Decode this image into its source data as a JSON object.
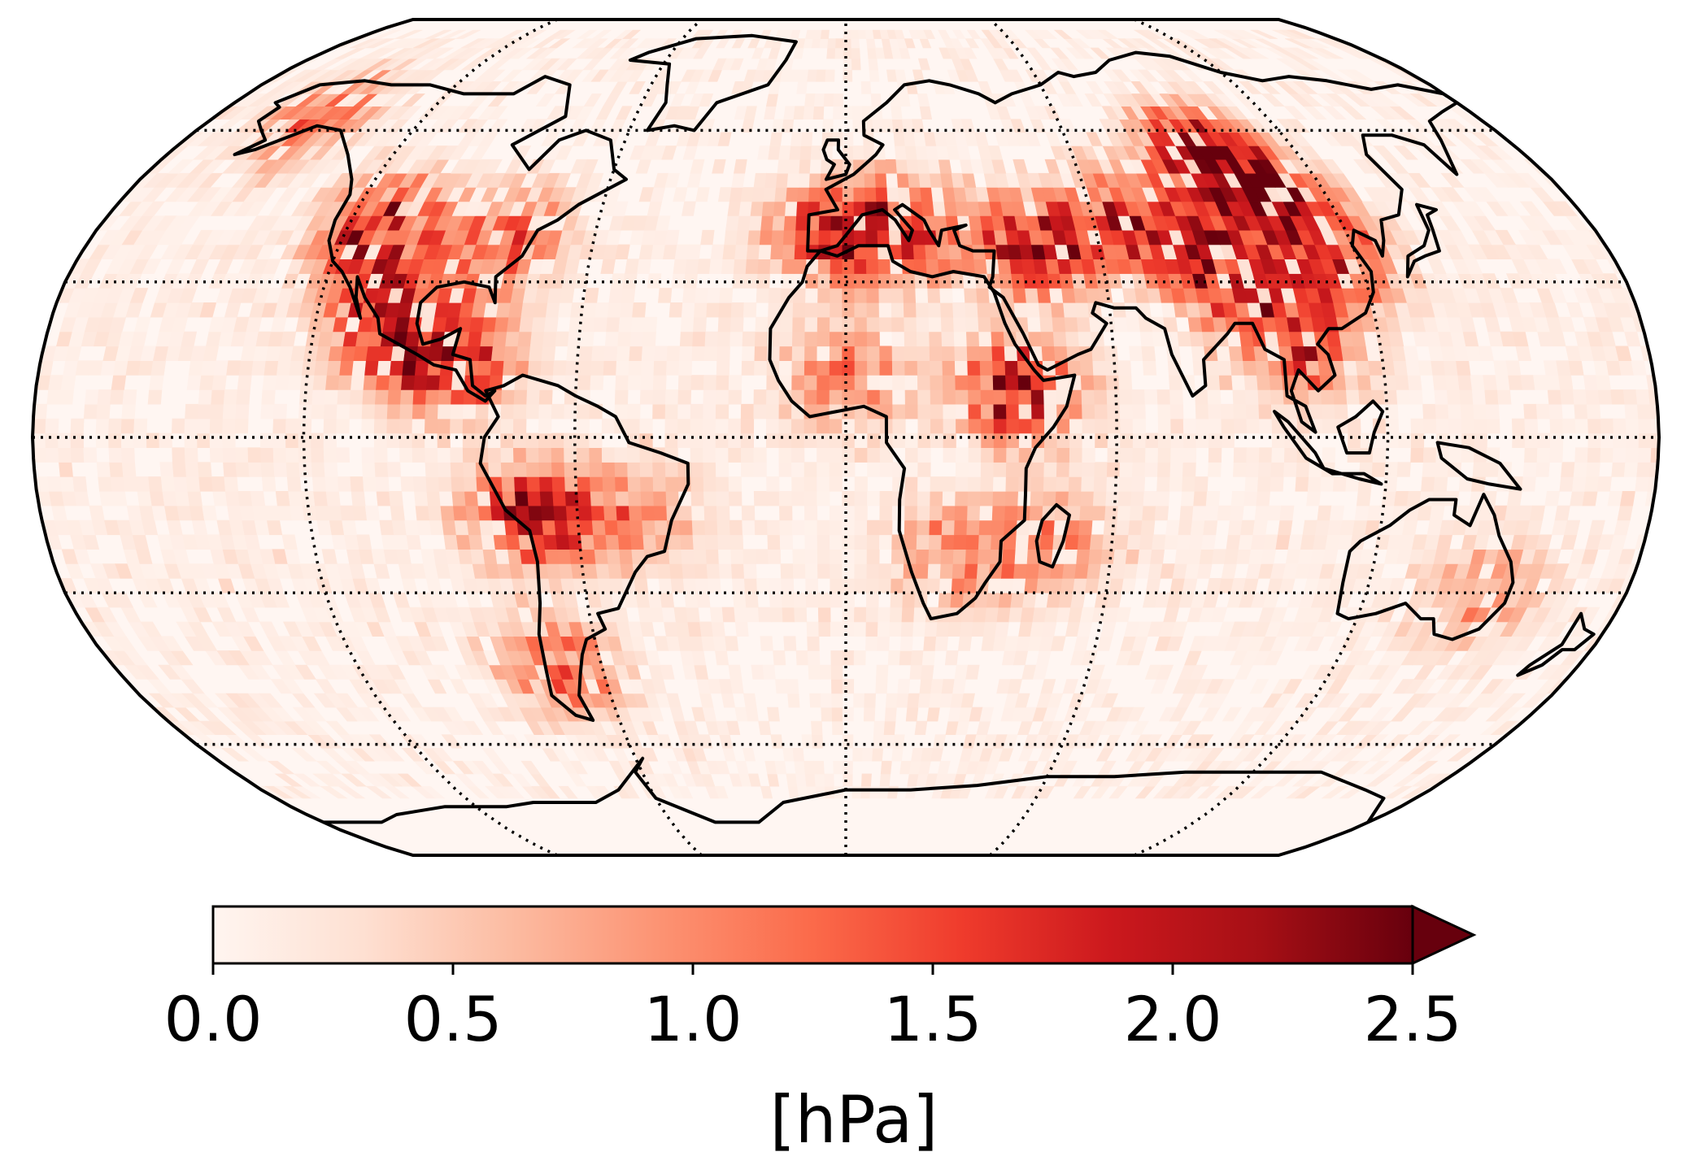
{
  "map": {
    "projection": "Robinson",
    "gridlines": {
      "style": "dotted",
      "latitudes": [
        -60,
        -30,
        0,
        30,
        60
      ],
      "longitudes": [
        -120,
        -60,
        0,
        60,
        120
      ]
    },
    "coastlines": true,
    "field": {
      "description_color": "Reds",
      "hotspots": [
        {
          "region": "western-north-america",
          "lon": -112,
          "lat": 40,
          "value": 2.4
        },
        {
          "region": "mexico",
          "lon": -102,
          "lat": 22,
          "value": 2.3
        },
        {
          "region": "central-america",
          "lon": -88,
          "lat": 14,
          "value": 2.0
        },
        {
          "region": "eastern-usa",
          "lon": -82,
          "lat": 38,
          "value": 1.6
        },
        {
          "region": "alaska",
          "lon": -150,
          "lat": 63,
          "value": 1.4
        },
        {
          "region": "andes",
          "lon": -70,
          "lat": -15,
          "value": 2.2
        },
        {
          "region": "patagonia",
          "lon": -70,
          "lat": -45,
          "value": 1.5
        },
        {
          "region": "brazil",
          "lon": -48,
          "lat": -15,
          "value": 1.0
        },
        {
          "region": "iberia",
          "lon": -4,
          "lat": 40,
          "value": 2.0
        },
        {
          "region": "mediterranean",
          "lon": 15,
          "lat": 40,
          "value": 1.8
        },
        {
          "region": "turkey-iran",
          "lon": 45,
          "lat": 37,
          "value": 2.4
        },
        {
          "region": "central-asia",
          "lon": 70,
          "lat": 42,
          "value": 2.0
        },
        {
          "region": "siberia",
          "lon": 95,
          "lat": 55,
          "value": 2.5
        },
        {
          "region": "mongolia",
          "lon": 105,
          "lat": 47,
          "value": 2.4
        },
        {
          "region": "tibet-himalaya",
          "lon": 88,
          "lat": 32,
          "value": 2.3
        },
        {
          "region": "east-asia",
          "lon": 115,
          "lat": 35,
          "value": 1.8
        },
        {
          "region": "southeast-asia",
          "lon": 102,
          "lat": 18,
          "value": 1.8
        },
        {
          "region": "ethiopia",
          "lon": 38,
          "lat": 9,
          "value": 2.2
        },
        {
          "region": "west-africa",
          "lon": 0,
          "lat": 12,
          "value": 1.2
        },
        {
          "region": "southern-africa",
          "lon": 26,
          "lat": -22,
          "value": 1.2
        },
        {
          "region": "madagascar",
          "lon": 47,
          "lat": -20,
          "value": 1.0
        },
        {
          "region": "australia-east",
          "lon": 147,
          "lat": -30,
          "value": 1.0
        }
      ]
    }
  },
  "colorbar": {
    "vmin": 0.0,
    "vmax": 2.5,
    "extend": "max",
    "cmap_stops": [
      "#fff5f0",
      "#fee0d2",
      "#fcbba1",
      "#fc9272",
      "#fb6a4a",
      "#ef3b2c",
      "#cb181d",
      "#a50f15",
      "#67000d"
    ],
    "ticks": [
      "0.0",
      "0.5",
      "1.0",
      "1.5",
      "2.0",
      "2.5"
    ],
    "label": "[hPa]"
  }
}
